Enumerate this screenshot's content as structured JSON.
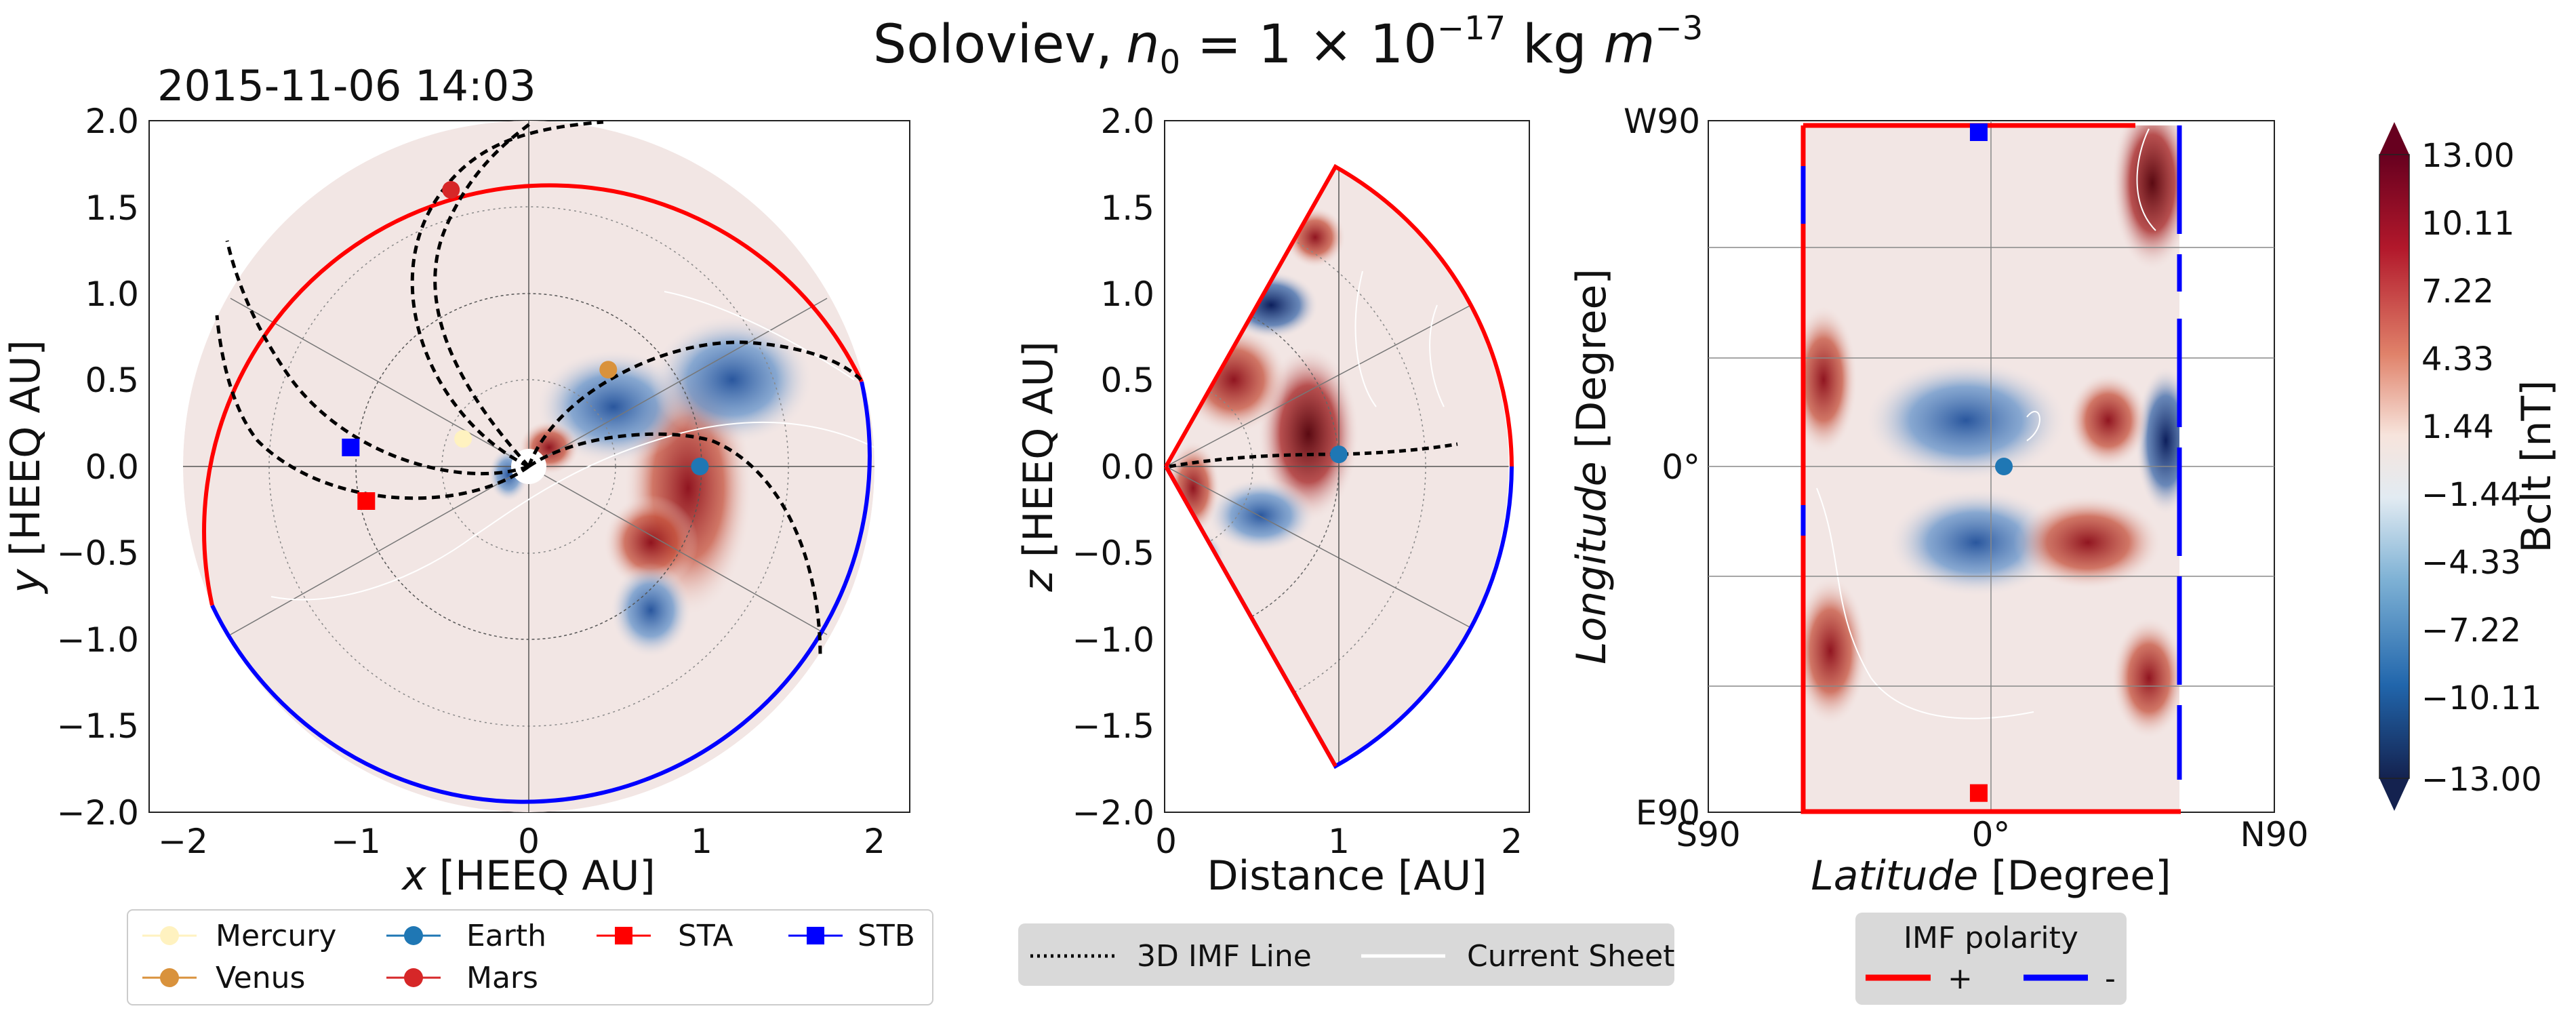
{
  "figure": {
    "title_prefix": "Soloviev,",
    "title_var": "n",
    "title_sub": "0",
    "title_eq": " = 1 × 10",
    "title_exp": "−17",
    "title_unit": " kg ",
    "title_unit_var": "m",
    "title_unit_exp": "−3",
    "timestamp": "2015-11-06 14:03"
  },
  "colors": {
    "background_field": "#f2e6e4",
    "positive_red": "#b22222",
    "negative_blue": "#1f5fa8",
    "polarity_plus": "#ff0000",
    "polarity_minus": "#0000ff",
    "mercury": "#fff2c0",
    "venus": "#d9923c",
    "earth": "#1f77b4",
    "mars": "#d62728",
    "sta": "#ff0000",
    "stb": "#0000ff"
  },
  "panels": {
    "equatorial": {
      "xlabel_var": "x",
      "xlabel_rest": " [HEEQ AU]",
      "ylabel_var": "y",
      "ylabel_rest": " [HEEQ AU]",
      "xticks": [
        "−2",
        "−1",
        "0",
        "1",
        "2"
      ],
      "yticks": [
        "2.0",
        "1.5",
        "1.0",
        "0.5",
        "0.0",
        "−0.5",
        "−1.0",
        "−1.5",
        "−2.0"
      ]
    },
    "meridional": {
      "xlabel": "Distance [AU]",
      "ylabel_var": "z",
      "ylabel_rest": " [HEEQ AU]",
      "xticks": [
        "0",
        "1",
        "2"
      ],
      "yticks": [
        "2.0",
        "1.5",
        "1.0",
        "0.5",
        "0.0",
        "−0.5",
        "−1.0",
        "−1.5",
        "−2.0"
      ]
    },
    "map": {
      "xlabel_var": "Latitude",
      "xlabel_rest": " [Degree]",
      "ylabel_var": "Longitude",
      "ylabel_rest": " [Degree]",
      "xticks": [
        "S90",
        "0°",
        "N90"
      ],
      "yticks": [
        "W90",
        "0°",
        "E90"
      ]
    }
  },
  "colorbar": {
    "label": "Bclt  [nT]",
    "ticks": [
      "13.00",
      "10.11",
      "7.22",
      "4.33",
      "1.44",
      "−1.44",
      "−4.33",
      "−7.22",
      "−10.11",
      "−13.00"
    ]
  },
  "legends": {
    "bodies": {
      "items": [
        {
          "label": "Mercury",
          "marker": "circle",
          "color": "#fff2c0"
        },
        {
          "label": "Earth",
          "marker": "circle",
          "color": "#1f77b4"
        },
        {
          "label": "STA",
          "marker": "square",
          "color": "#ff0000"
        },
        {
          "label": "STB",
          "marker": "square",
          "color": "#0000ff"
        },
        {
          "label": "Venus",
          "marker": "circle",
          "color": "#d9923c"
        },
        {
          "label": "Mars",
          "marker": "circle",
          "color": "#d62728"
        }
      ]
    },
    "lines": {
      "imf_line": "3D IMF Line",
      "current_sheet": "Current Sheet"
    },
    "polarity": {
      "title": "IMF polarity",
      "plus": "+",
      "minus": "-"
    }
  },
  "chart_data": [
    {
      "type": "scatter",
      "title": "2015-11-06 14:03",
      "xlabel": "x [HEEQ AU]",
      "ylabel": "y [HEEQ AU]",
      "xlim": [
        -2.2,
        2.2
      ],
      "ylim": [
        -2.0,
        2.0
      ],
      "grid": true,
      "series": [
        {
          "name": "Mercury",
          "x": [
            -0.38
          ],
          "y": [
            0.16
          ]
        },
        {
          "name": "Venus",
          "x": [
            0.46
          ],
          "y": [
            0.56
          ]
        },
        {
          "name": "Earth",
          "x": [
            0.99
          ],
          "y": [
            0.0
          ]
        },
        {
          "name": "Mars",
          "x": [
            -0.45
          ],
          "y": [
            1.6
          ]
        },
        {
          "name": "STA",
          "x": [
            -0.94
          ],
          "y": [
            -0.2
          ]
        },
        {
          "name": "STB",
          "x": [
            -1.03
          ],
          "y": [
            0.11
          ]
        }
      ],
      "colorbar_range": [
        -13.0,
        13.0
      ]
    },
    {
      "type": "scatter",
      "xlabel": "Distance [AU]",
      "ylabel": "z [HEEQ AU]",
      "xlim": [
        0,
        2.1
      ],
      "ylim": [
        -2.0,
        2.0
      ],
      "grid": true,
      "series": [
        {
          "name": "Earth",
          "x": [
            1.0
          ],
          "y": [
            0.07
          ]
        }
      ]
    },
    {
      "type": "scatter",
      "xlabel": "Latitude [Degree]",
      "ylabel": "Longitude [Degree]",
      "xlim": [
        -90,
        90
      ],
      "ylim": [
        -90,
        90
      ],
      "grid": true,
      "series": [
        {
          "name": "Earth",
          "x": [
            4
          ],
          "y": [
            0
          ]
        },
        {
          "name": "STA",
          "x": [
            -4
          ],
          "y": [
            -85
          ]
        },
        {
          "name": "STB",
          "x": [
            -4
          ],
          "y": [
            87
          ]
        }
      ]
    }
  ]
}
